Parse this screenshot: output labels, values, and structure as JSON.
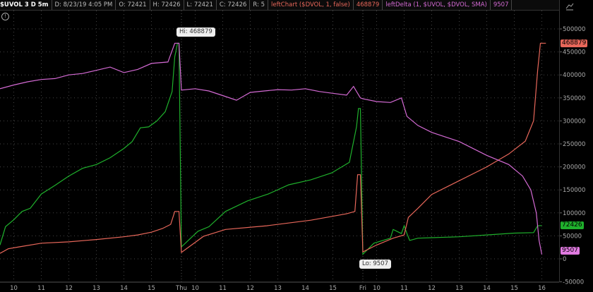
{
  "header": {
    "symbol": "$UVOL 3 D 5m",
    "date": "D: 8/23/19 4:05 PM",
    "open": "O: 72421",
    "high": "H: 72426",
    "low": "L: 72421",
    "close": "C: 72426",
    "range": "R: 5",
    "study1": "leftChart ($DVOL, 1, false)",
    "study1_value": "468879",
    "study2": "leftDelta (1, $UVOL, $DVOL, SMA)",
    "study2_value": "9507"
  },
  "icons": {
    "info": "info-icon",
    "style": "chart-style-icon"
  },
  "bubbles": {
    "hi": "Hi: 468879",
    "lo": "Lo: 9507"
  },
  "tags": {
    "green": "72426",
    "red": "468879",
    "magenta": "9507"
  },
  "colors": {
    "green": "#1fb02c",
    "red": "#e8675a",
    "magenta": "#d46ad4",
    "grid": "#555",
    "axis_text": "#aaa"
  },
  "chart_data": {
    "type": "line",
    "ylim": [
      -50000,
      520000
    ],
    "yticks": [
      500000,
      450000,
      400000,
      350000,
      300000,
      250000,
      200000,
      150000,
      100000,
      50000,
      0,
      -50000
    ],
    "grid": true,
    "sessions": [
      {
        "label": "",
        "ticks": [
          "10",
          "11",
          "12",
          "13",
          "14",
          "15"
        ]
      },
      {
        "label": "Thu",
        "ticks": [
          "10",
          "11",
          "12",
          "13",
          "14",
          "15"
        ]
      },
      {
        "label": "Fri",
        "ticks": [
          "10",
          "11",
          "12",
          "13",
          "14",
          "15",
          "16"
        ]
      }
    ],
    "series": [
      {
        "key": "green",
        "color": "#1fb02c",
        "sessions": [
          [
            [
              9.5,
              30000
            ],
            [
              9.7,
              70000
            ],
            [
              10,
              85000
            ],
            [
              10.3,
              103000
            ],
            [
              10.6,
              110000
            ],
            [
              11,
              141000
            ],
            [
              11.5,
              160000
            ],
            [
              12,
              180000
            ],
            [
              12.5,
              197000
            ],
            [
              13,
              205000
            ],
            [
              13.5,
              220000
            ],
            [
              14,
              240000
            ],
            [
              14.3,
              255000
            ],
            [
              14.6,
              285000
            ],
            [
              14.9,
              287000
            ],
            [
              15.2,
              300000
            ],
            [
              15.5,
              320000
            ],
            [
              15.75,
              364000
            ],
            [
              15.85,
              440000
            ],
            [
              15.95,
              468879
            ],
            [
              16,
              468879
            ]
          ],
          [
            [
              9.5,
              26000
            ],
            [
              10.1,
              60000
            ],
            [
              10.5,
              70000
            ],
            [
              11.1,
              103000
            ],
            [
              11.9,
              126000
            ],
            [
              12.65,
              141000
            ],
            [
              13.4,
              161000
            ],
            [
              14.2,
              172000
            ],
            [
              14.96,
              187000
            ],
            [
              15.6,
              210000
            ],
            [
              15.86,
              287000
            ],
            [
              15.93,
              327000
            ],
            [
              16,
              327000
            ]
          ],
          [
            [
              9.5,
              10000
            ],
            [
              9.9,
              34000
            ],
            [
              10.5,
              45000
            ],
            [
              10.6,
              64000
            ],
            [
              10.9,
              55000
            ],
            [
              11,
              72000
            ],
            [
              11.1,
              55000
            ],
            [
              11.2,
              40000
            ],
            [
              11.5,
              45000
            ],
            [
              12,
              46000
            ],
            [
              13,
              48000
            ],
            [
              14,
              52000
            ],
            [
              15,
              56000
            ],
            [
              15.7,
              57000
            ],
            [
              15.85,
              72000
            ],
            [
              16,
              72426
            ]
          ]
        ]
      },
      {
        "key": "red",
        "color": "#e8675a",
        "sessions": [
          [
            [
              9.5,
              12000
            ],
            [
              9.8,
              22000
            ],
            [
              10.2,
              26000
            ],
            [
              11,
              34000
            ],
            [
              12,
              37000
            ],
            [
              13,
              42000
            ],
            [
              14,
              48000
            ],
            [
              14.5,
              52000
            ],
            [
              15,
              58000
            ],
            [
              15.4,
              66000
            ],
            [
              15.7,
              75000
            ],
            [
              15.85,
              103000
            ],
            [
              16,
              103000
            ]
          ],
          [
            [
              9.5,
              14000
            ],
            [
              10.3,
              49000
            ],
            [
              11.1,
              64000
            ],
            [
              12.6,
              72000
            ],
            [
              14.2,
              84000
            ],
            [
              15.5,
              98000
            ],
            [
              15.8,
              103000
            ],
            [
              15.9,
              183000
            ],
            [
              16,
              183000
            ]
          ],
          [
            [
              9.5,
              15000
            ],
            [
              10,
              30000
            ],
            [
              10.6,
              45000
            ],
            [
              11,
              52000
            ],
            [
              11.15,
              90000
            ],
            [
              11.5,
              110000
            ],
            [
              12,
              140000
            ],
            [
              13,
              170000
            ],
            [
              14,
              200000
            ],
            [
              14.8,
              228000
            ],
            [
              15.4,
              256000
            ],
            [
              15.7,
              300000
            ],
            [
              15.85,
              410000
            ],
            [
              15.95,
              468879
            ],
            [
              16.15,
              468879
            ]
          ]
        ]
      },
      {
        "key": "magenta",
        "color": "#d46ad4",
        "sessions": [
          [
            [
              9.5,
              370000
            ],
            [
              10,
              378000
            ],
            [
              10.5,
              385000
            ],
            [
              11,
              390000
            ],
            [
              11.5,
              392000
            ],
            [
              12,
              400000
            ],
            [
              12.5,
              403000
            ],
            [
              13,
              410000
            ],
            [
              13.5,
              417000
            ],
            [
              14,
              405000
            ],
            [
              14.5,
              412000
            ],
            [
              15,
              425000
            ],
            [
              15.6,
              428000
            ],
            [
              15.85,
              468879
            ],
            [
              16,
              468879
            ]
          ],
          [
            [
              9.5,
              367000
            ],
            [
              10,
              370000
            ],
            [
              10.5,
              365000
            ],
            [
              11,
              355000
            ],
            [
              11.5,
              345000
            ],
            [
              12,
              362000
            ],
            [
              12.5,
              365000
            ],
            [
              13,
              368000
            ],
            [
              13.5,
              367000
            ],
            [
              14,
              370000
            ],
            [
              14.5,
              364000
            ],
            [
              15,
              360000
            ],
            [
              15.5,
              356000
            ],
            [
              15.75,
              375000
            ],
            [
              15.85,
              365000
            ],
            [
              16,
              350000
            ]
          ],
          [
            [
              9.5,
              348000
            ],
            [
              10,
              342000
            ],
            [
              10.5,
              340000
            ],
            [
              10.9,
              350000
            ],
            [
              11.1,
              310000
            ],
            [
              11.5,
              290000
            ],
            [
              12,
              275000
            ],
            [
              13,
              255000
            ],
            [
              14,
              225000
            ],
            [
              14.8,
              205000
            ],
            [
              15.3,
              180000
            ],
            [
              15.6,
              150000
            ],
            [
              15.8,
              100000
            ],
            [
              15.9,
              40000
            ],
            [
              16,
              9507
            ]
          ]
        ]
      }
    ]
  }
}
